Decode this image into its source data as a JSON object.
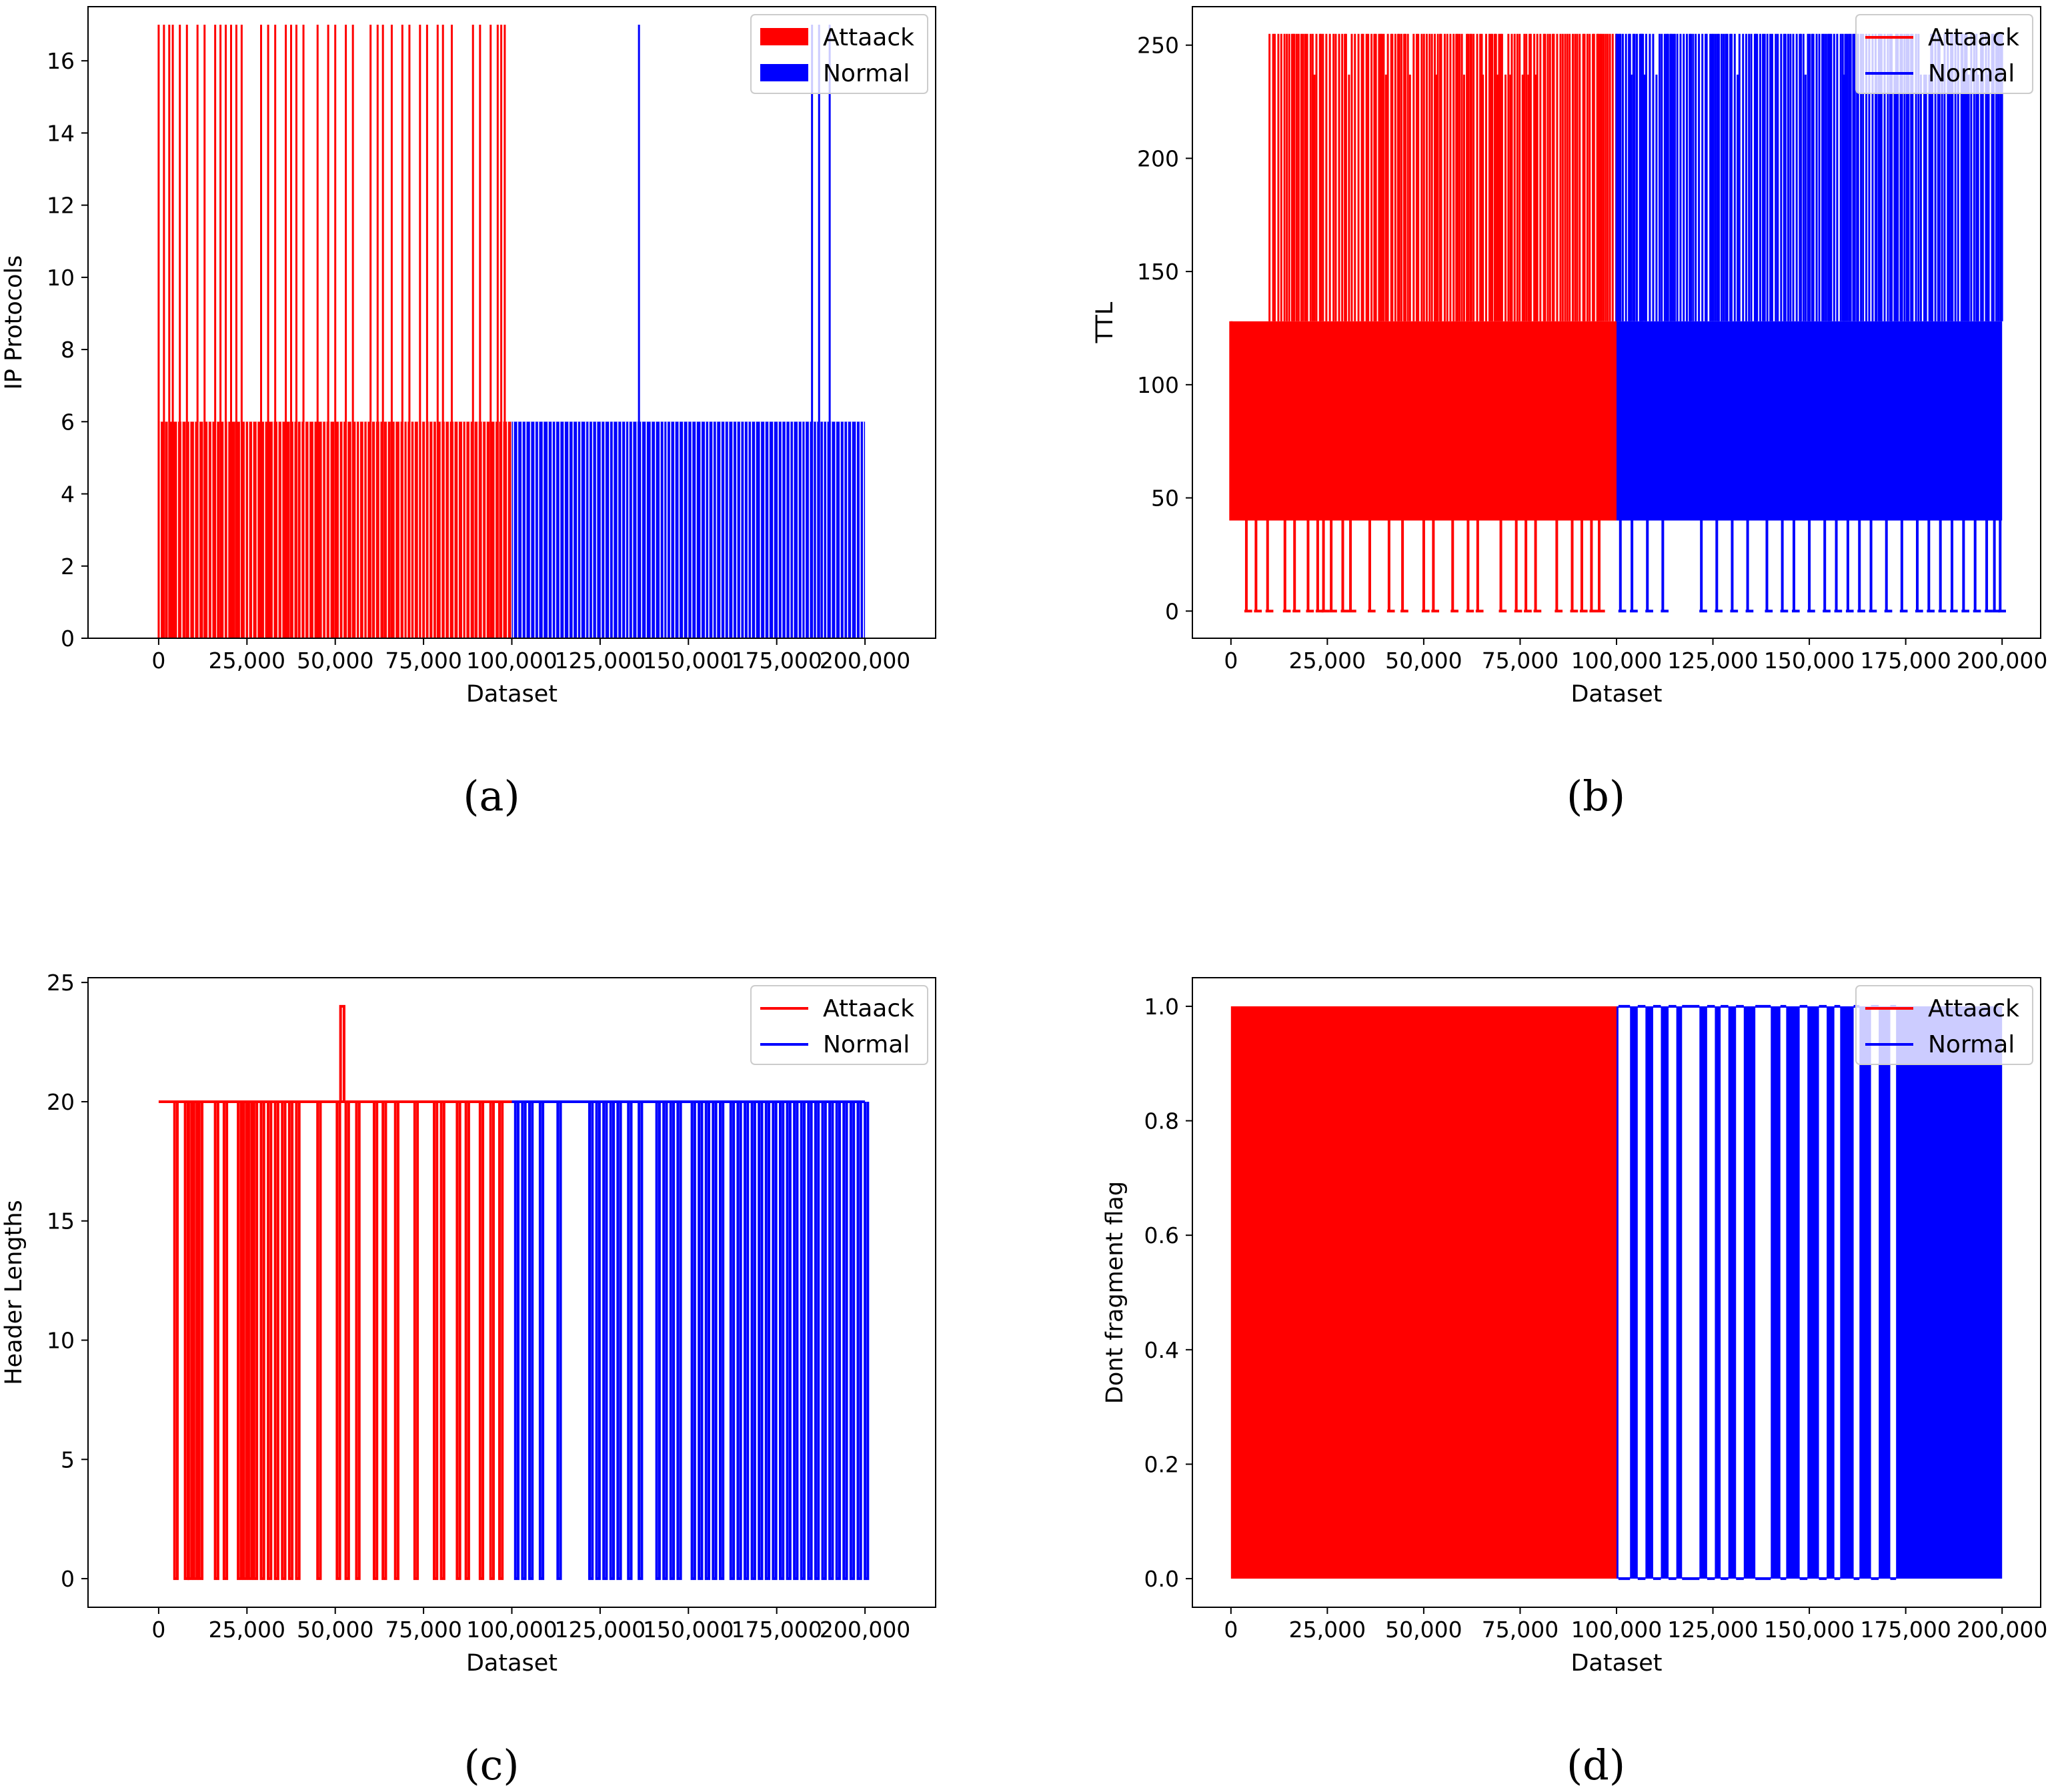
{
  "chart_data": [
    {
      "panel": "(a)",
      "type": "bar",
      "xlabel": "Dataset",
      "ylabel": "IP Protocols",
      "xlim": [
        -20000,
        220000
      ],
      "ylim": [
        0,
        17.5
      ],
      "xticks": [
        0,
        25000,
        50000,
        75000,
        100000,
        125000,
        150000,
        175000,
        200000
      ],
      "xtick_labels": [
        "0",
        "25,000",
        "50,000",
        "75,000",
        "100,000",
        "125,000",
        "150,000",
        "175,000",
        "200,000"
      ],
      "yticks": [
        0,
        2,
        4,
        6,
        8,
        10,
        12,
        14,
        16
      ],
      "legend": {
        "position": "top-right",
        "entries": [
          "Attaack",
          "Normal"
        ],
        "marker": "patch"
      },
      "series": [
        {
          "name": "Attaack",
          "color": "#ff0000",
          "x_range": [
            0,
            100000
          ],
          "base_level": 6,
          "spike_level": 17,
          "low_level": 0,
          "spike_x": [
            0,
            1500,
            3000,
            4000,
            6000,
            8000,
            11000,
            13000,
            16000,
            17500,
            19000,
            20500,
            22000,
            23500,
            29000,
            31000,
            33000,
            36000,
            37500,
            39000,
            41000,
            45000,
            48000,
            50000,
            53000,
            55000,
            60000,
            62000,
            63500,
            66000,
            69000,
            71000,
            74000,
            76000,
            79000,
            80500,
            83000,
            89000,
            91000,
            94000,
            96000,
            97000,
            98000
          ]
        },
        {
          "name": "Normal",
          "color": "#0000ff",
          "x_range": [
            100000,
            200000
          ],
          "base_level": 6,
          "spike_level": 17,
          "low_level": 0,
          "spike_x": [
            136000,
            185000,
            187000,
            190000
          ]
        }
      ]
    },
    {
      "panel": "(b)",
      "type": "line",
      "xlabel": "Dataset",
      "ylabel": "TTL",
      "xlim": [
        -10000,
        210000
      ],
      "ylim": [
        -12,
        267
      ],
      "xticks": [
        0,
        25000,
        50000,
        75000,
        100000,
        125000,
        150000,
        175000,
        200000
      ],
      "xtick_labels": [
        "0",
        "25,000",
        "50,000",
        "75,000",
        "100,000",
        "125,000",
        "150,000",
        "175,000",
        "200,000"
      ],
      "yticks": [
        0,
        50,
        100,
        150,
        200,
        250
      ],
      "legend": {
        "position": "top-right",
        "entries": [
          "Attaack",
          "Normal"
        ],
        "marker": "line"
      },
      "series": [
        {
          "name": "Attaack",
          "color": "#ff0000",
          "x_range": [
            0,
            100000
          ],
          "band": [
            40,
            128
          ],
          "high_level": 255,
          "low_level": 0,
          "high_range": [
            10000,
            100000
          ],
          "low_x": [
            4000,
            6500,
            9500,
            14000,
            16500,
            20000,
            22500,
            24000,
            26000,
            29000,
            31000,
            36000,
            41000,
            44500,
            50000,
            52500,
            57500,
            61500,
            64000,
            70000,
            74000,
            76500,
            79000,
            84500,
            88500,
            91000,
            93500,
            95500
          ]
        },
        {
          "name": "Normal",
          "color": "#0000ff",
          "x_range": [
            100000,
            200000
          ],
          "band": [
            40,
            128
          ],
          "high_level": 255,
          "low_level": 0,
          "high_range": [
            100000,
            200000
          ],
          "low_x": [
            101000,
            104000,
            108000,
            112000,
            122000,
            126000,
            130000,
            134000,
            139000,
            143000,
            146000,
            150000,
            154000,
            157000,
            160000,
            163000,
            166000,
            170000,
            174000,
            178000,
            181000,
            184000,
            187000,
            190000,
            193000,
            196000,
            198000,
            199500
          ]
        }
      ]
    },
    {
      "panel": "(c)",
      "type": "line",
      "xlabel": "Dataset",
      "ylabel": "Header Lengths",
      "xlim": [
        -20000,
        220000
      ],
      "ylim": [
        -1.2,
        25.2
      ],
      "xticks": [
        0,
        25000,
        50000,
        75000,
        100000,
        125000,
        150000,
        175000,
        200000
      ],
      "xtick_labels": [
        "0",
        "25,000",
        "50,000",
        "75,000",
        "100,000",
        "125,000",
        "150,000",
        "175,000",
        "200,000"
      ],
      "yticks": [
        0,
        5,
        10,
        15,
        20,
        25
      ],
      "legend": {
        "position": "top-right",
        "entries": [
          "Attaack",
          "Normal"
        ],
        "marker": "line"
      },
      "series": [
        {
          "name": "Attaack",
          "color": "#ff0000",
          "x_range": [
            0,
            100000
          ],
          "base_level": 20,
          "low_level": 0,
          "peak": {
            "x": 52000,
            "y": 24
          },
          "low_x": [
            4500,
            7500,
            8500,
            10000,
            11500,
            16000,
            18500,
            22500,
            24000,
            25500,
            27000,
            29000,
            31000,
            33000,
            35000,
            37000,
            39000,
            45000,
            50500,
            53000,
            56000,
            61000,
            63500,
            67000,
            72500,
            78000,
            80000,
            84500,
            87000,
            91000,
            94000,
            96500
          ]
        },
        {
          "name": "Normal",
          "color": "#0000ff",
          "x_range": [
            100000,
            200000
          ],
          "base_level": 20,
          "low_level": 0,
          "low_x": [
            101000,
            103000,
            105000,
            108000,
            113000,
            122000,
            124000,
            126000,
            128000,
            130000,
            133000,
            136000,
            141000,
            143000,
            145000,
            147000,
            151000,
            153000,
            155000,
            157000,
            159000,
            162000,
            164000,
            166000,
            168000,
            170000,
            172000,
            174000,
            176000,
            178000,
            180000,
            182000,
            184000,
            186000,
            188000,
            190000,
            192000,
            194000,
            196000,
            198000,
            200000
          ]
        }
      ]
    },
    {
      "panel": "(d)",
      "type": "line",
      "xlabel": "Dataset",
      "ylabel": "Dont fragment flag",
      "xlim": [
        -10000,
        210000
      ],
      "ylim": [
        -0.05,
        1.05
      ],
      "xticks": [
        0,
        25000,
        50000,
        75000,
        100000,
        125000,
        150000,
        175000,
        200000
      ],
      "xtick_labels": [
        "0",
        "25,000",
        "50,000",
        "75,000",
        "100,000",
        "125,000",
        "150,000",
        "175,000",
        "200,000"
      ],
      "yticks": [
        0.0,
        0.2,
        0.4,
        0.6,
        0.8,
        1.0
      ],
      "ytick_labels": [
        "0.0",
        "0.2",
        "0.4",
        "0.6",
        "0.8",
        "1.0"
      ],
      "legend": {
        "position": "top-right",
        "entries": [
          "Attaack",
          "Normal"
        ],
        "marker": "line"
      },
      "series": [
        {
          "name": "Attaack",
          "color": "#ff0000",
          "x_range": [
            0,
            100000
          ],
          "solid_fill": [
            0,
            1
          ]
        },
        {
          "name": "Normal",
          "color": "#0000ff",
          "x_range": [
            100000,
            200000
          ],
          "high_level": 1,
          "low_level": 0,
          "gap_ranges": [
            [
              100500,
              103500
            ],
            [
              105500,
              107500
            ],
            [
              109500,
              111500
            ],
            [
              113500,
              115500
            ],
            [
              117000,
              121500
            ],
            [
              123500,
              125500
            ],
            [
              127000,
              129000
            ],
            [
              131000,
              133000
            ],
            [
              136000,
              140000
            ],
            [
              142500,
              144000
            ],
            [
              147500,
              149500
            ],
            [
              152500,
              154500
            ],
            [
              156500,
              158000
            ],
            [
              161500,
              163000
            ],
            [
              166000,
              168000
            ],
            [
              171000,
              172500
            ]
          ]
        }
      ]
    }
  ]
}
